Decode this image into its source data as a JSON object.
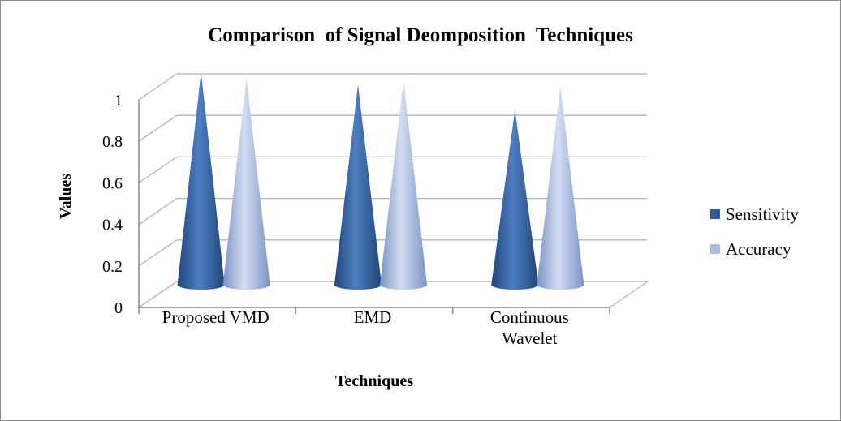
{
  "chart_data": {
    "type": "bar",
    "mark_shape": "3d-cone",
    "title": "Comparison  of Signal Deomposition  Techniques",
    "xlabel": "Techniques",
    "ylabel": "Values",
    "ylim": [
      0,
      1
    ],
    "yticks": [
      "0",
      "0.2",
      "0.4",
      "0.6",
      "0.8",
      "1"
    ],
    "categories": [
      [
        "Proposed VMD"
      ],
      [
        "EMD"
      ],
      [
        "Continuous",
        "Wavelet"
      ]
    ],
    "series": [
      {
        "name": "Sensitivity",
        "values": [
          1.0,
          0.94,
          0.82
        ],
        "color": "#2e5d9c"
      },
      {
        "name": "Accuracy",
        "values": [
          0.97,
          0.96,
          0.93
        ],
        "color": "#a9bde2"
      }
    ],
    "grid": true,
    "legend_position": "right"
  }
}
